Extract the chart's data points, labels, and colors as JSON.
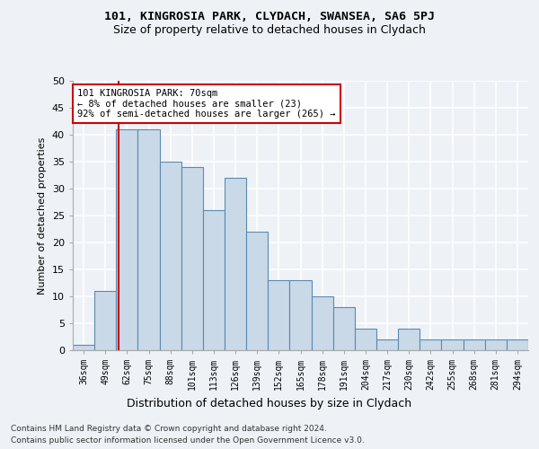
{
  "title1": "101, KINGROSIA PARK, CLYDACH, SWANSEA, SA6 5PJ",
  "title2": "Size of property relative to detached houses in Clydach",
  "xlabel": "Distribution of detached houses by size in Clydach",
  "ylabel": "Number of detached properties",
  "footnote1": "Contains HM Land Registry data © Crown copyright and database right 2024.",
  "footnote2": "Contains public sector information licensed under the Open Government Licence v3.0.",
  "categories": [
    "36sqm",
    "49sqm",
    "62sqm",
    "75sqm",
    "88sqm",
    "101sqm",
    "113sqm",
    "126sqm",
    "139sqm",
    "152sqm",
    "165sqm",
    "178sqm",
    "191sqm",
    "204sqm",
    "217sqm",
    "230sqm",
    "242sqm",
    "255sqm",
    "268sqm",
    "281sqm",
    "294sqm"
  ],
  "values": [
    1,
    11,
    41,
    41,
    35,
    34,
    26,
    32,
    22,
    13,
    13,
    10,
    8,
    4,
    2,
    4,
    2,
    2,
    2,
    2,
    2
  ],
  "bar_color": "#c9d9e8",
  "bar_edge_color": "#5a8ab0",
  "vline_color": "#cc0000",
  "annotation_title": "101 KINGROSIA PARK: 70sqm",
  "annotation_line1": "← 8% of detached houses are smaller (23)",
  "annotation_line2": "92% of semi-detached houses are larger (265) →",
  "annotation_box_color": "#ffffff",
  "annotation_box_edge": "#cc0000",
  "ylim": [
    0,
    50
  ],
  "yticks": [
    0,
    5,
    10,
    15,
    20,
    25,
    30,
    35,
    40,
    45,
    50
  ],
  "background_color": "#eef2f7",
  "grid_color": "#ffffff",
  "title1_fontsize": 9.5,
  "title2_fontsize": 9.0
}
